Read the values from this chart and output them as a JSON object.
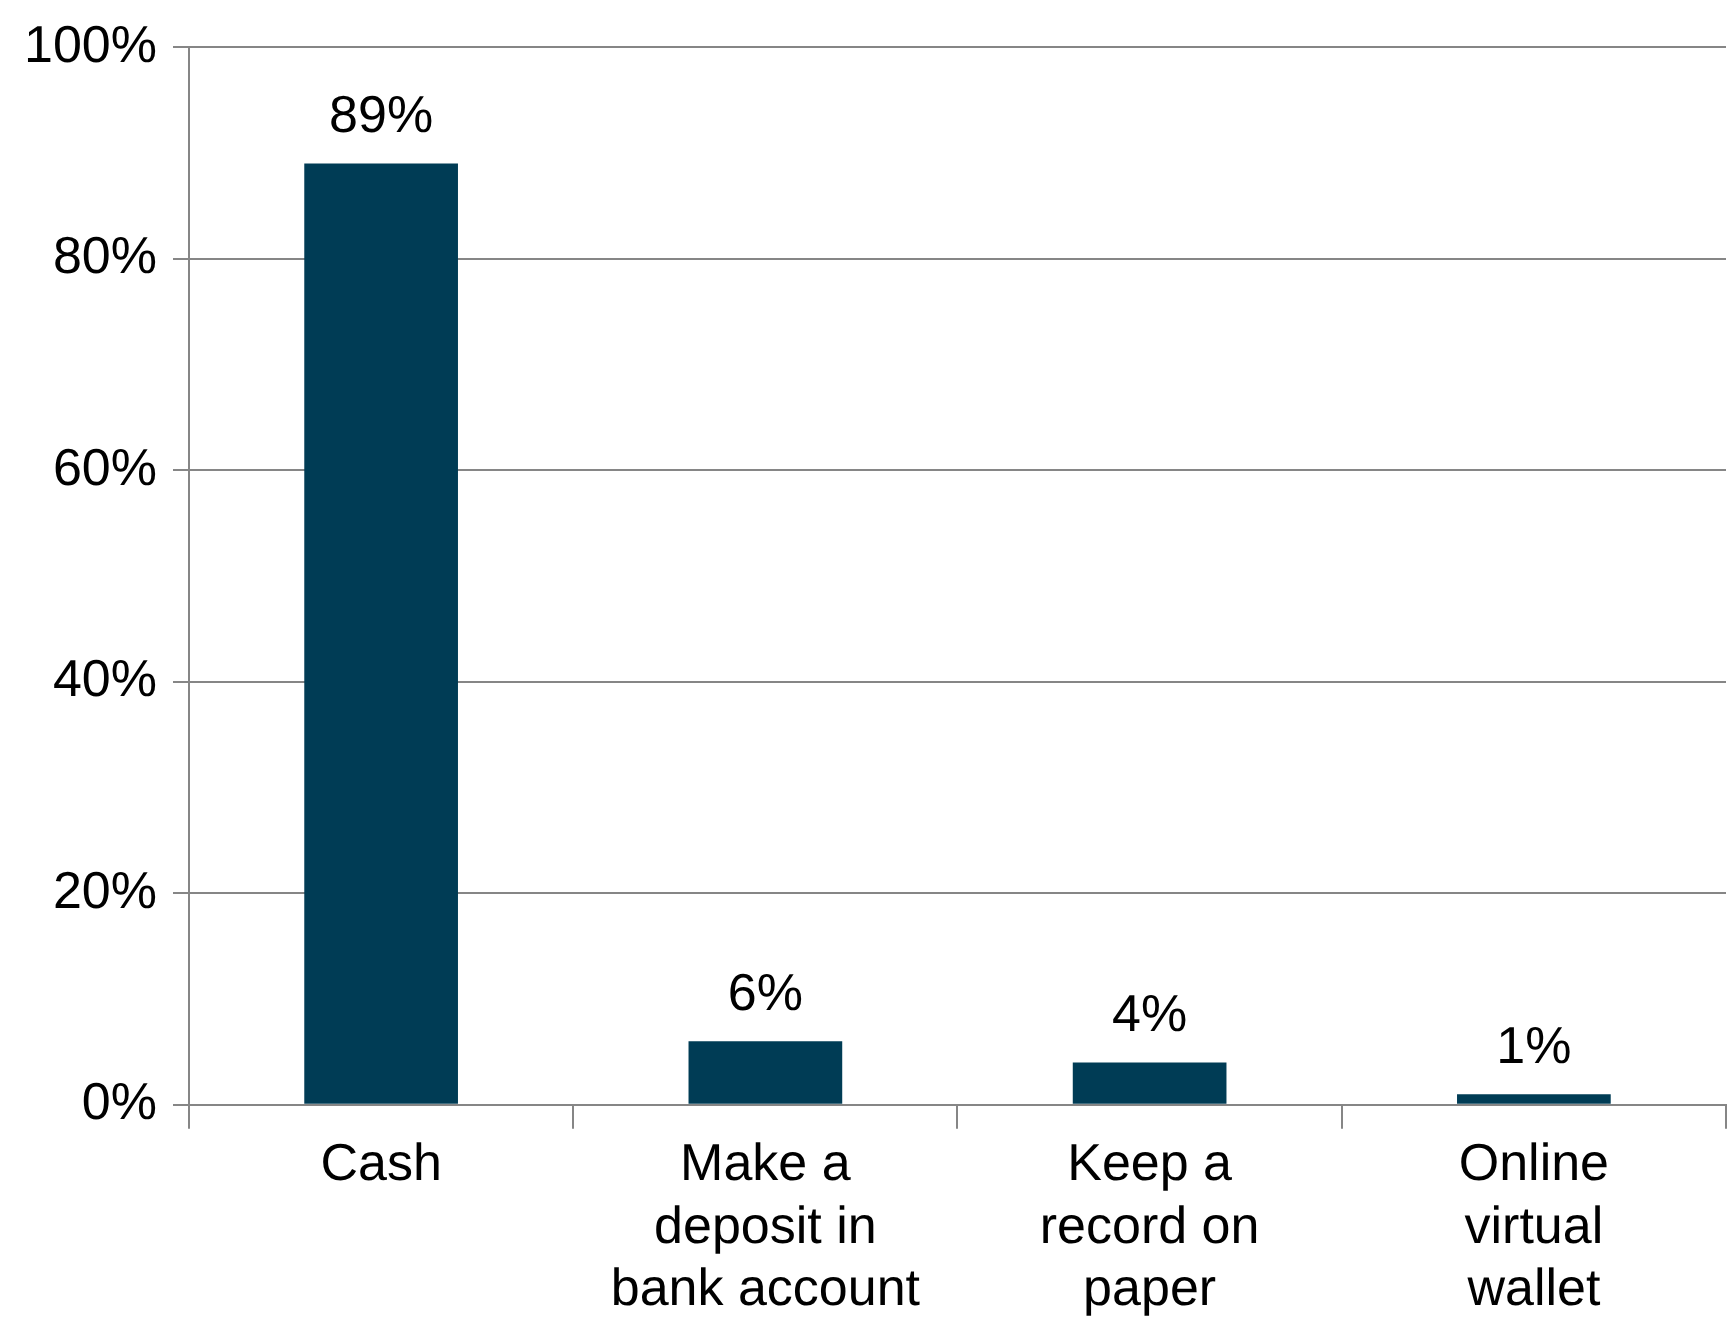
{
  "chart_data": {
    "type": "bar",
    "categories": [
      "Cash",
      "Make a deposit in bank account",
      "Keep a record on paper",
      "Online virtual wallet"
    ],
    "values": [
      89,
      6,
      4,
      1
    ],
    "value_labels": [
      "89%",
      "6%",
      "4%",
      "1%"
    ],
    "color": "#003c55",
    "ylim": [
      0,
      100
    ],
    "yticks": [
      {
        "value": 0,
        "label": "0%"
      },
      {
        "value": 20,
        "label": "20%"
      },
      {
        "value": 40,
        "label": "40%"
      },
      {
        "value": 60,
        "label": "60%"
      },
      {
        "value": 80,
        "label": "80%"
      },
      {
        "value": 100,
        "label": "100%"
      }
    ],
    "grid": "y",
    "legend": false
  }
}
